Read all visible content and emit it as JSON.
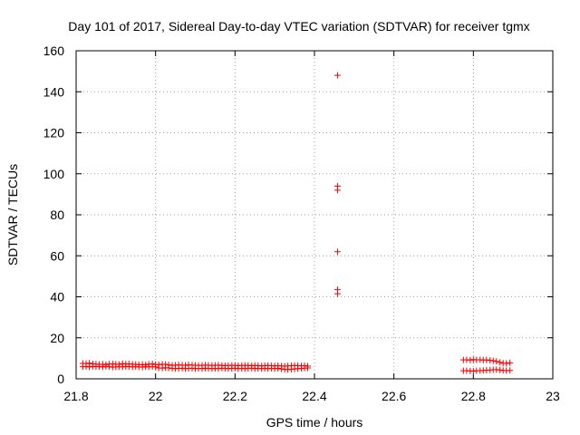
{
  "chart_data": {
    "type": "scatter",
    "title": "Day 101 of 2017, Sidereal Day-to-day VTEC variation (SDTVAR) for receiver tgmx",
    "xlabel": "GPS time / hours",
    "ylabel": "SDTVAR / TECUs",
    "xlim": [
      21.8,
      23.0
    ],
    "ylim": [
      0,
      160
    ],
    "xticks": [
      "21.8",
      "22",
      "22.2",
      "22.4",
      "22.6",
      "22.8",
      "23"
    ],
    "yticks": [
      "0",
      "20",
      "40",
      "60",
      "80",
      "100",
      "120",
      "140",
      "160"
    ],
    "grid": true,
    "marker": "+",
    "color": "#ff0000",
    "series": [
      {
        "points": [
          [
            21.817,
            7.5
          ],
          [
            21.825,
            7.4
          ],
          [
            21.833,
            7.6
          ],
          [
            21.842,
            7.3
          ],
          [
            21.85,
            7.2
          ],
          [
            21.858,
            7.0
          ],
          [
            21.867,
            7.1
          ],
          [
            21.875,
            6.9
          ],
          [
            21.883,
            7.2
          ],
          [
            21.892,
            7.3
          ],
          [
            21.9,
            7.1
          ],
          [
            21.908,
            7.0
          ],
          [
            21.917,
            7.4
          ],
          [
            21.925,
            7.2
          ],
          [
            21.933,
            7.3
          ],
          [
            21.942,
            7.1
          ],
          [
            21.95,
            7.0
          ],
          [
            21.958,
            6.9
          ],
          [
            21.967,
            7.0
          ],
          [
            21.975,
            6.8
          ],
          [
            21.983,
            7.1
          ],
          [
            21.992,
            7.3
          ],
          [
            22.0,
            7.0
          ],
          [
            22.008,
            6.9
          ],
          [
            22.017,
            7.1
          ],
          [
            22.025,
            7.0
          ],
          [
            22.033,
            6.8
          ],
          [
            22.042,
            6.6
          ],
          [
            22.05,
            6.7
          ],
          [
            22.058,
            6.8
          ],
          [
            22.067,
            6.7
          ],
          [
            22.075,
            6.6
          ],
          [
            22.083,
            6.8
          ],
          [
            22.092,
            6.7
          ],
          [
            22.1,
            6.6
          ],
          [
            22.108,
            6.5
          ],
          [
            22.117,
            6.6
          ],
          [
            22.125,
            6.7
          ],
          [
            22.133,
            6.6
          ],
          [
            22.142,
            6.5
          ],
          [
            22.15,
            6.6
          ],
          [
            22.158,
            6.7
          ],
          [
            22.167,
            6.5
          ],
          [
            22.175,
            6.4
          ],
          [
            22.183,
            6.5
          ],
          [
            22.192,
            6.6
          ],
          [
            22.2,
            6.5
          ],
          [
            22.208,
            6.4
          ],
          [
            22.217,
            6.5
          ],
          [
            22.225,
            6.6
          ],
          [
            22.233,
            6.5
          ],
          [
            22.242,
            6.4
          ],
          [
            22.25,
            6.5
          ],
          [
            22.258,
            6.4
          ],
          [
            22.267,
            6.3
          ],
          [
            22.275,
            6.4
          ],
          [
            22.283,
            6.5
          ],
          [
            22.292,
            6.4
          ],
          [
            22.3,
            6.3
          ],
          [
            22.308,
            6.4
          ],
          [
            22.317,
            6.3
          ],
          [
            22.325,
            6.2
          ],
          [
            22.333,
            6.3
          ],
          [
            22.342,
            6.4
          ],
          [
            22.35,
            6.5
          ],
          [
            22.358,
            6.4
          ],
          [
            22.367,
            6.3
          ],
          [
            22.375,
            6.4
          ],
          [
            22.383,
            6.2
          ],
          [
            21.817,
            5.9
          ],
          [
            21.825,
            6.0
          ],
          [
            21.833,
            5.8
          ],
          [
            21.842,
            6.1
          ],
          [
            21.85,
            5.9
          ],
          [
            21.858,
            6.0
          ],
          [
            21.867,
            5.8
          ],
          [
            21.875,
            6.1
          ],
          [
            21.883,
            5.9
          ],
          [
            21.892,
            5.7
          ],
          [
            21.9,
            5.8
          ],
          [
            21.908,
            5.9
          ],
          [
            21.917,
            5.8
          ],
          [
            21.925,
            6.0
          ],
          [
            21.933,
            5.9
          ],
          [
            21.942,
            5.8
          ],
          [
            21.95,
            5.9
          ],
          [
            21.958,
            5.8
          ],
          [
            21.967,
            5.7
          ],
          [
            21.975,
            5.9
          ],
          [
            21.983,
            5.8
          ],
          [
            21.992,
            5.9
          ],
          [
            22.0,
            5.8
          ],
          [
            22.008,
            5.3
          ],
          [
            22.017,
            5.2
          ],
          [
            22.025,
            5.4
          ],
          [
            22.033,
            5.3
          ],
          [
            22.042,
            5.1
          ],
          [
            22.05,
            5.0
          ],
          [
            22.058,
            5.1
          ],
          [
            22.067,
            5.2
          ],
          [
            22.075,
            5.0
          ],
          [
            22.083,
            5.1
          ],
          [
            22.092,
            5.2
          ],
          [
            22.1,
            5.0
          ],
          [
            22.108,
            5.1
          ],
          [
            22.117,
            5.0
          ],
          [
            22.125,
            5.2
          ],
          [
            22.133,
            5.1
          ],
          [
            22.142,
            5.0
          ],
          [
            22.15,
            5.1
          ],
          [
            22.158,
            5.0
          ],
          [
            22.167,
            5.2
          ],
          [
            22.175,
            5.1
          ],
          [
            22.183,
            5.0
          ],
          [
            22.192,
            5.1
          ],
          [
            22.2,
            5.2
          ],
          [
            22.208,
            5.0
          ],
          [
            22.217,
            5.1
          ],
          [
            22.225,
            5.0
          ],
          [
            22.233,
            5.1
          ],
          [
            22.242,
            5.2
          ],
          [
            22.25,
            5.0
          ],
          [
            22.258,
            5.1
          ],
          [
            22.267,
            5.0
          ],
          [
            22.275,
            5.1
          ],
          [
            22.283,
            5.0
          ],
          [
            22.292,
            5.1
          ],
          [
            22.3,
            5.0
          ],
          [
            22.308,
            5.1
          ],
          [
            22.317,
            4.8
          ],
          [
            22.325,
            4.6
          ],
          [
            22.333,
            4.5
          ],
          [
            22.342,
            4.7
          ],
          [
            22.35,
            4.8
          ],
          [
            22.358,
            5.0
          ],
          [
            22.367,
            5.1
          ],
          [
            22.375,
            5.2
          ],
          [
            22.383,
            5.3
          ],
          [
            22.458,
            148
          ],
          [
            22.458,
            94
          ],
          [
            22.458,
            92
          ],
          [
            22.458,
            62
          ],
          [
            22.458,
            43.5
          ],
          [
            22.458,
            41.5
          ],
          [
            22.775,
            9.2
          ],
          [
            22.783,
            9.3
          ],
          [
            22.792,
            9.1
          ],
          [
            22.8,
            9.4
          ],
          [
            22.808,
            9.2
          ],
          [
            22.817,
            9.3
          ],
          [
            22.825,
            9.1
          ],
          [
            22.833,
            9.2
          ],
          [
            22.842,
            9.0
          ],
          [
            22.85,
            8.8
          ],
          [
            22.858,
            8.5
          ],
          [
            22.867,
            8.0
          ],
          [
            22.875,
            7.6
          ],
          [
            22.883,
            7.5
          ],
          [
            22.892,
            7.8
          ],
          [
            22.775,
            3.9
          ],
          [
            22.783,
            4.0
          ],
          [
            22.792,
            3.8
          ],
          [
            22.8,
            3.7
          ],
          [
            22.808,
            3.9
          ],
          [
            22.817,
            4.0
          ],
          [
            22.825,
            4.1
          ],
          [
            22.833,
            4.2
          ],
          [
            22.842,
            4.3
          ],
          [
            22.85,
            4.4
          ],
          [
            22.858,
            4.5
          ],
          [
            22.867,
            4.3
          ],
          [
            22.875,
            4.1
          ],
          [
            22.883,
            4.0
          ],
          [
            22.892,
            4.1
          ]
        ]
      }
    ]
  }
}
